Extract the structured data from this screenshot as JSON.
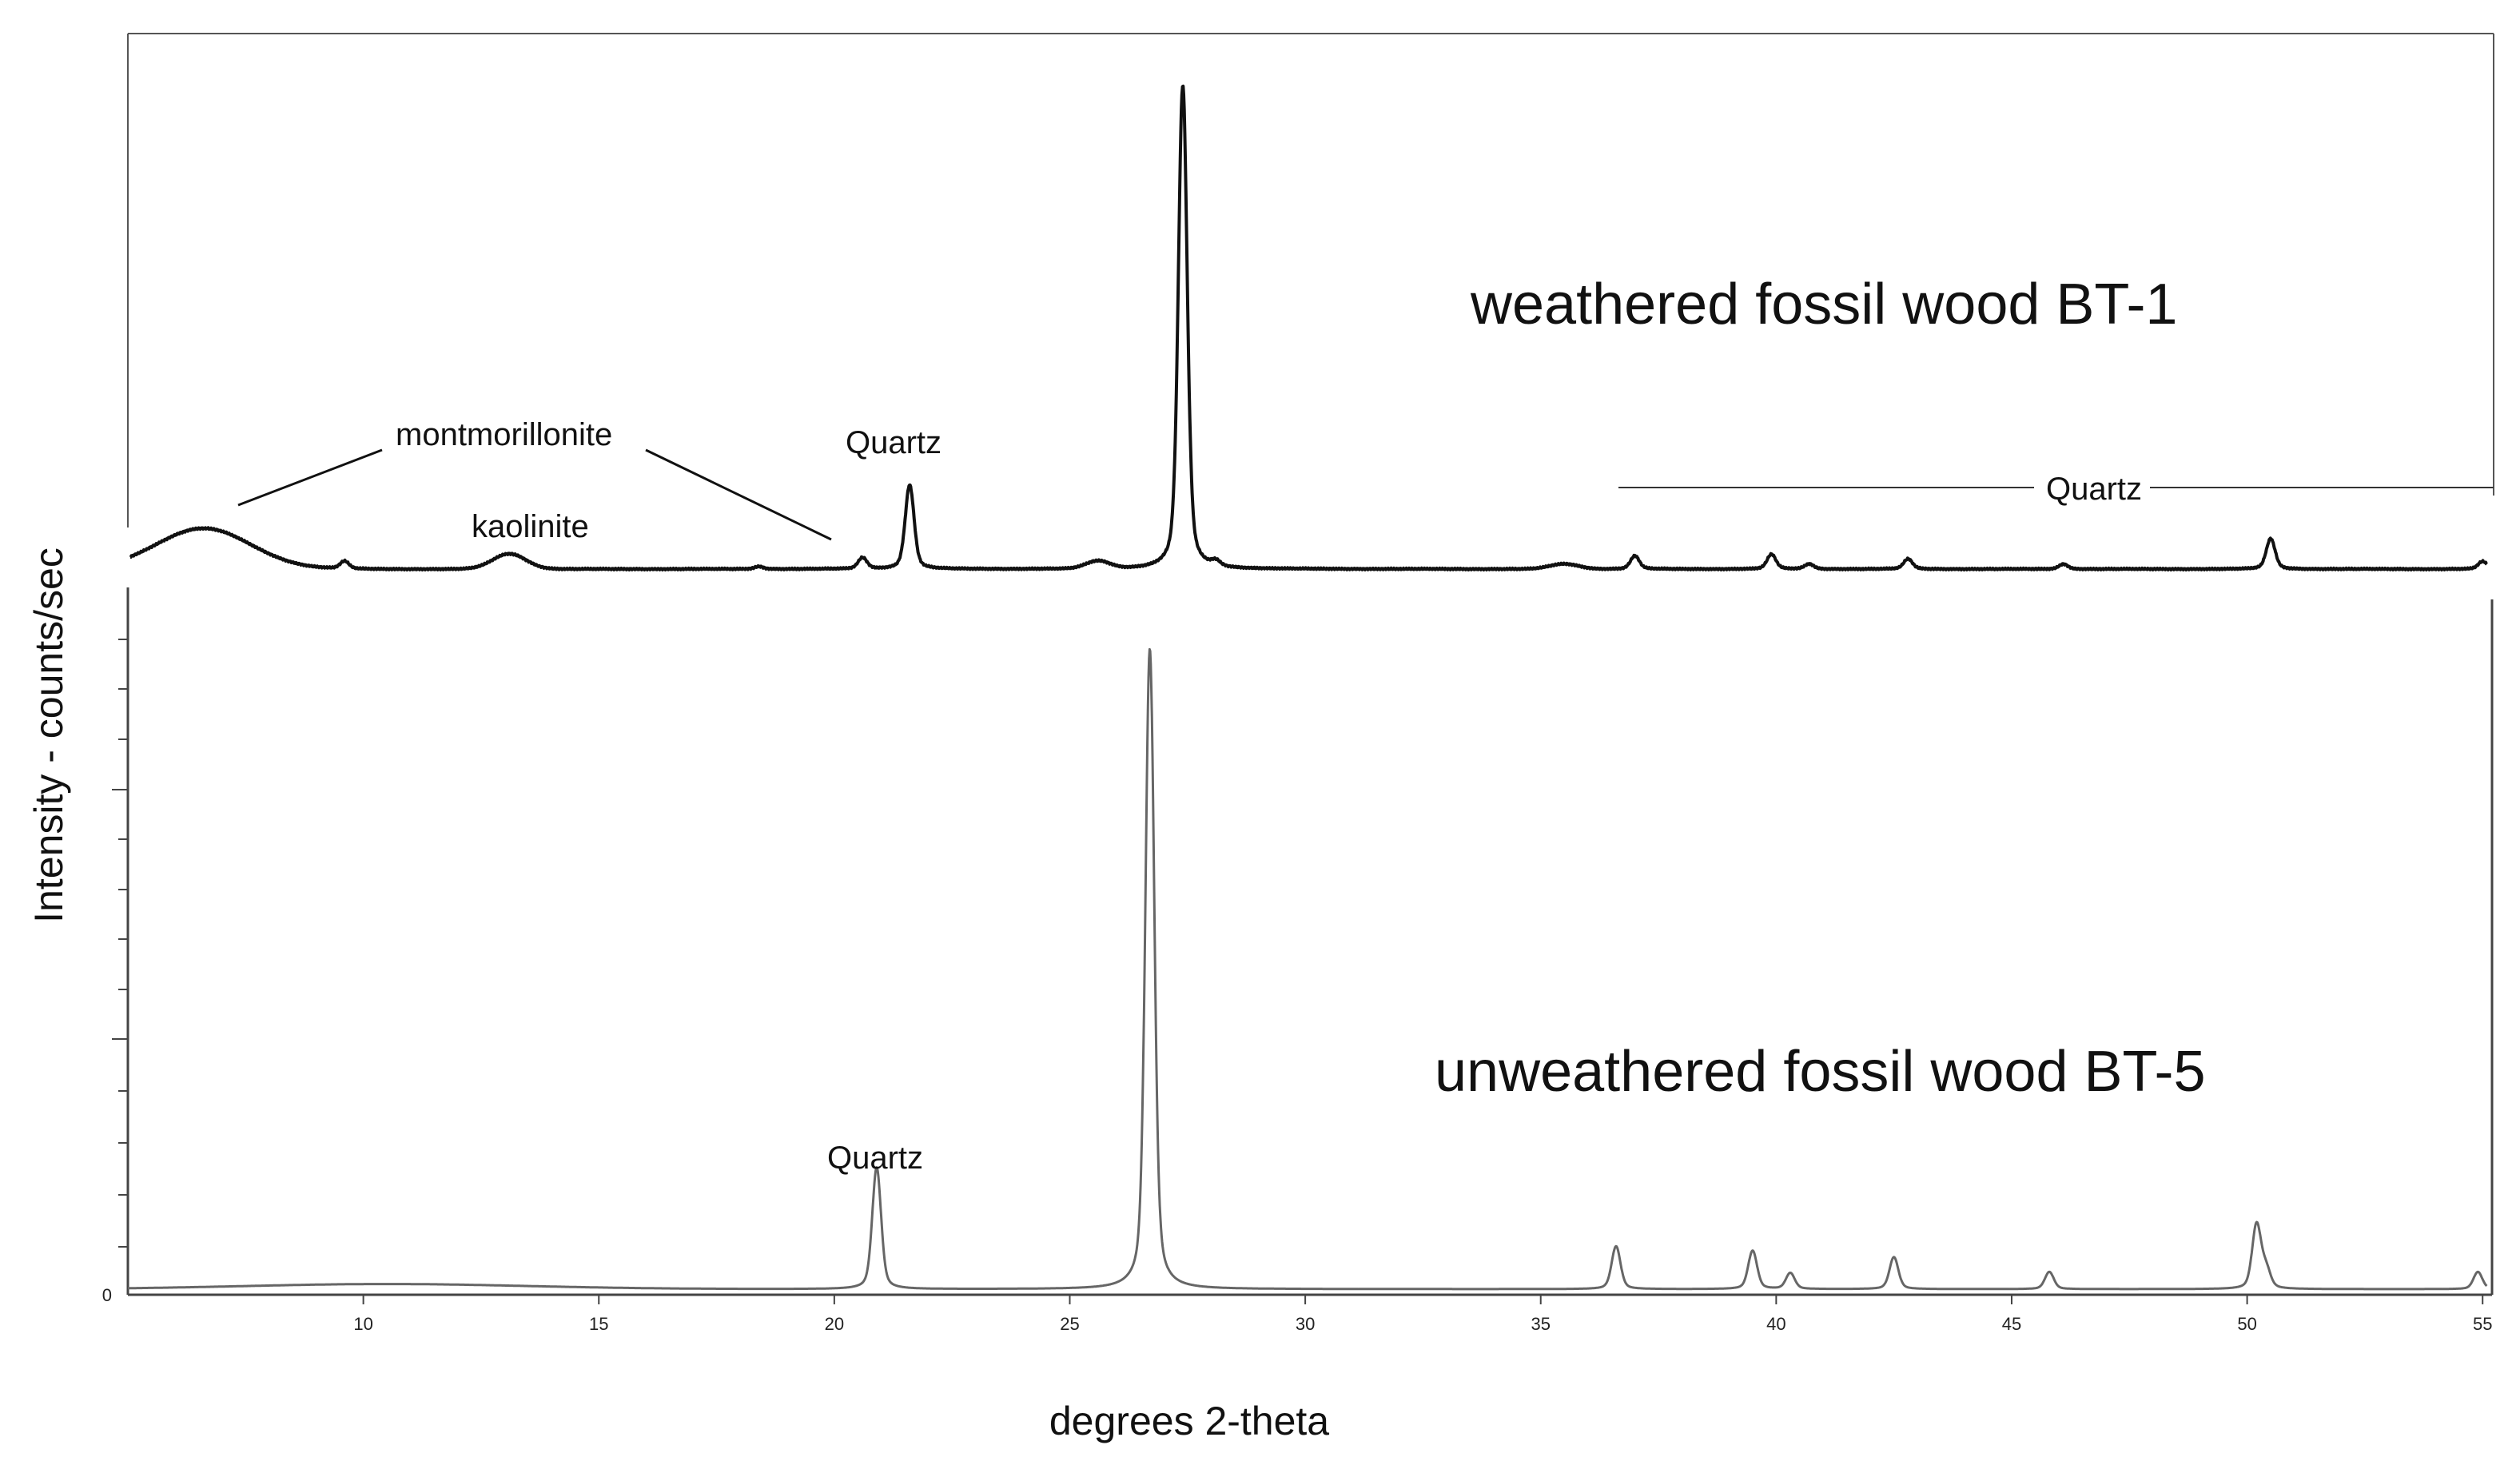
{
  "chart_data": {
    "type": "line",
    "xlabel": "degrees 2-theta",
    "ylabel": "Intensity - counts/sec",
    "xlim": [
      5,
      55.2
    ],
    "x_ticks": [
      10,
      15,
      20,
      25,
      30,
      35,
      40,
      45,
      50,
      55
    ],
    "y_tick_labels": [
      "0"
    ],
    "grid": false,
    "series": [
      {
        "name": "weathered fossil wood BT-1",
        "color": "#111111",
        "baseline": 0.02,
        "broad": [
          {
            "x": 6.6,
            "h": 0.08,
            "w": 1.0
          },
          {
            "x": 13.1,
            "h": 0.03,
            "w": 0.35
          },
          {
            "x": 25.6,
            "h": 0.015,
            "w": 0.25
          },
          {
            "x": 35.5,
            "h": 0.01,
            "w": 0.3
          }
        ],
        "peaks": [
          {
            "x": 9.6,
            "h": 0.015
          },
          {
            "x": 18.4,
            "h": 0.005
          },
          {
            "x": 20.6,
            "h": 0.022
          },
          {
            "x": 21.6,
            "h": 0.165
          },
          {
            "x": 27.4,
            "h": 0.95
          },
          {
            "x": 28.1,
            "h": 0.01
          },
          {
            "x": 37.0,
            "h": 0.026
          },
          {
            "x": 39.9,
            "h": 0.029
          },
          {
            "x": 40.7,
            "h": 0.01
          },
          {
            "x": 42.8,
            "h": 0.02
          },
          {
            "x": 46.1,
            "h": 0.01
          },
          {
            "x": 50.5,
            "h": 0.06
          },
          {
            "x": 55.0,
            "h": 0.015
          }
        ]
      },
      {
        "name": "unweathered fossil wood BT-5",
        "color": "#666666",
        "baseline": 0.003,
        "broad": [
          {
            "x": 10.5,
            "h": 0.008,
            "w": 3.0
          }
        ],
        "peaks": [
          {
            "x": 20.9,
            "h": 0.19
          },
          {
            "x": 26.7,
            "h": 1.0
          },
          {
            "x": 36.6,
            "h": 0.067
          },
          {
            "x": 39.5,
            "h": 0.06
          },
          {
            "x": 40.3,
            "h": 0.025
          },
          {
            "x": 42.5,
            "h": 0.05
          },
          {
            "x": 45.8,
            "h": 0.027
          },
          {
            "x": 50.2,
            "h": 0.1
          },
          {
            "x": 50.4,
            "h": 0.03
          },
          {
            "x": 54.9,
            "h": 0.027
          }
        ]
      }
    ],
    "annotations": {
      "bt1_title": "weathered fossil wood BT-1",
      "bt5_title": "unweathered fossil wood BT-5",
      "montmorillonite": "montmorillonite",
      "kaolinite": "kaolinite",
      "quartz_bt1": "Quartz",
      "quartz_range": "Quartz",
      "quartz_bt5": "Quartz"
    }
  }
}
